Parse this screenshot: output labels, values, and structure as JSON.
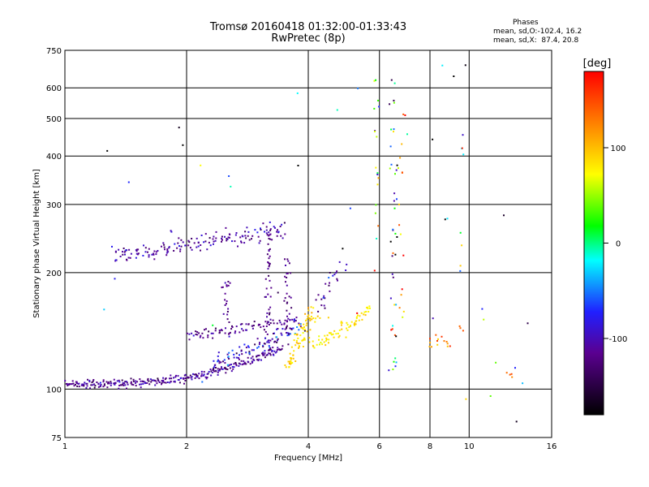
{
  "chart_data": {
    "type": "scatter",
    "title": "Tromsø 20160418 01:32:00-01:33:43",
    "subtitle": "RwPretec (8p)",
    "xlabel": "Frequency [MHz]",
    "ylabel": "Stationary phase Virtual Height [km]",
    "xscale": "log",
    "yscale": "log",
    "xlim": [
      1,
      16
    ],
    "ylim": [
      75,
      750
    ],
    "xticks": [
      1,
      2,
      4,
      6,
      8,
      10,
      16
    ],
    "xtick_labels": [
      "1",
      "2",
      "4",
      "6",
      "8",
      "10",
      "16"
    ],
    "yticks": [
      75,
      100,
      200,
      300,
      400,
      500,
      600,
      750
    ],
    "ytick_labels": [
      "75",
      "100",
      "200",
      "300",
      "400",
      "500",
      "600",
      "750"
    ],
    "x_gridlines": [
      2,
      4,
      6,
      8,
      10
    ],
    "y_gridlines": [
      100,
      200,
      300,
      400,
      500,
      600
    ],
    "grid": true,
    "phases_box": {
      "heading": "Phases",
      "line1": "mean, sd,O:-102.4, 16.2",
      "line2": "mean, sd,X:  87.4, 20.8"
    },
    "colorbar": {
      "label": "[deg]",
      "min": -180,
      "max": 180,
      "ticks": [
        100,
        0,
        -100
      ],
      "tick_labels": [
        "100",
        "0",
        "-100"
      ]
    },
    "traces": [
      {
        "kind": "sweep",
        "x_start": 1.0,
        "x_end": 3.45,
        "y_start": 103,
        "y_end": 128,
        "curve": 3.2,
        "n": 300,
        "phase": -115,
        "phase_sd": 15,
        "jitter": 0.012
      },
      {
        "kind": "sweep",
        "x_start": 1.3,
        "x_end": 3.5,
        "y_start": 222,
        "y_end": 262,
        "curve": 1.4,
        "n": 160,
        "phase": -110,
        "phase_sd": 15,
        "jitter": 0.025
      },
      {
        "kind": "sweep",
        "x_start": 2.0,
        "x_end": 3.8,
        "y_start": 140,
        "y_end": 150,
        "curve": 1.5,
        "n": 90,
        "phase": -115,
        "phase_sd": 15,
        "jitter": 0.02
      },
      {
        "kind": "sweep",
        "x_start": 2.3,
        "x_end": 3.85,
        "y_start": 117,
        "y_end": 145,
        "curve": 1.2,
        "n": 90,
        "phase": -90,
        "phase_sd": 30,
        "jitter": 0.02
      },
      {
        "kind": "vertical",
        "x": 2.5,
        "y_min": 140,
        "y_max": 190,
        "n": 20,
        "phase": -115,
        "phase_sd": 10
      },
      {
        "kind": "vertical",
        "x": 3.2,
        "y_min": 125,
        "y_max": 260,
        "n": 45,
        "phase": -120,
        "phase_sd": 10
      },
      {
        "kind": "vertical",
        "x": 3.55,
        "y_min": 130,
        "y_max": 225,
        "n": 30,
        "phase": -120,
        "phase_sd": 10
      },
      {
        "kind": "sweep",
        "x_start": 3.55,
        "x_end": 4.15,
        "y_start": 115,
        "y_end": 160,
        "curve": 1.0,
        "n": 80,
        "phase": 92,
        "phase_sd": 10,
        "jitter": 0.03
      },
      {
        "kind": "sweep",
        "x_start": 4.1,
        "x_end": 5.7,
        "y_start": 130,
        "y_end": 160,
        "curve": 1.3,
        "n": 70,
        "phase": 80,
        "phase_sd": 10,
        "jitter": 0.02
      },
      {
        "kind": "sweep",
        "x_start": 4.2,
        "x_end": 4.9,
        "y_start": 162,
        "y_end": 205,
        "curve": 1.0,
        "n": 25,
        "phase": -110,
        "phase_sd": 20,
        "jitter": 0.03
      },
      {
        "kind": "vertical",
        "x": 5.9,
        "y_min": 200,
        "y_max": 640,
        "n": 18,
        "phase": 20,
        "phase_sd": 90
      },
      {
        "kind": "vertical",
        "x": 6.5,
        "y_min": 110,
        "y_max": 620,
        "n": 40,
        "phase": -40,
        "phase_sd": 110
      },
      {
        "kind": "vertical",
        "x": 6.85,
        "y_min": 150,
        "y_max": 550,
        "n": 16,
        "phase": 120,
        "phase_sd": 50
      },
      {
        "kind": "sweep",
        "x_start": 7.9,
        "x_end": 9.0,
        "y_start": 133,
        "y_end": 130,
        "curve": 1.0,
        "n": 14,
        "phase": 130,
        "phase_sd": 25,
        "jitter": 0.02
      },
      {
        "kind": "vertical",
        "x": 9.6,
        "y_min": 110,
        "y_max": 500,
        "n": 10,
        "phase": 60,
        "phase_sd": 90
      },
      {
        "kind": "sweep",
        "x_start": 12.4,
        "x_end": 12.8,
        "y_start": 110,
        "y_end": 109,
        "curve": 1.0,
        "n": 4,
        "phase": 140,
        "phase_sd": 15,
        "jitter": 0.01
      },
      {
        "kind": "random",
        "x_min": 1.2,
        "x_max": 14,
        "y_min": 80,
        "y_max": 700,
        "n": 45,
        "phase": -60,
        "phase_sd": 110
      }
    ]
  }
}
